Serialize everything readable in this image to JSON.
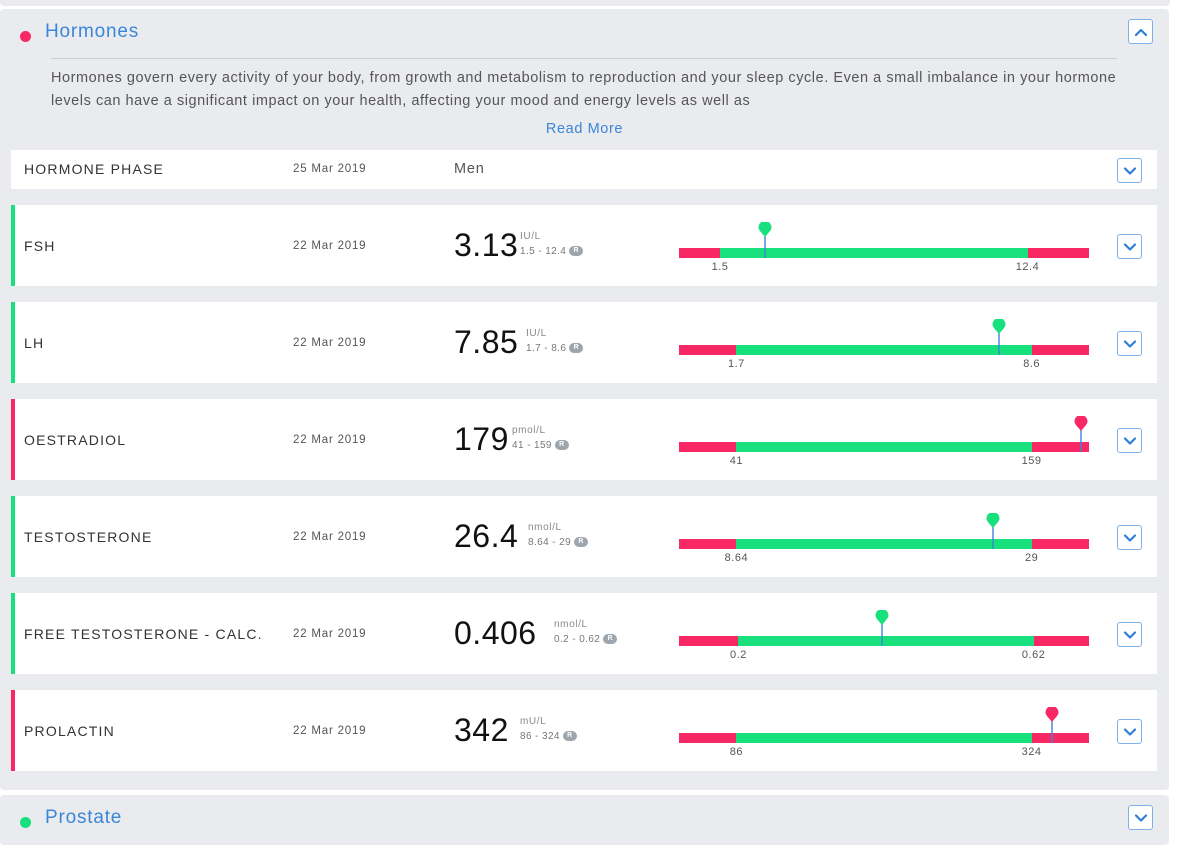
{
  "colors": {
    "accent_blue": "#3a86d8",
    "normal_green": "#17e07d",
    "abnormal_pink": "#f72863"
  },
  "hormones": {
    "title": "Hormones",
    "status_color": "#f72863",
    "toggle_icon": "chevron-up-icon",
    "description": "Hormones govern every activity of your body, from growth and metabolism to reproduction and your sleep cycle. Even a small imbalance in your hormone levels can have a significant impact on your health, affecting your mood and energy levels as well as",
    "read_more": "Read More",
    "phase": {
      "name": "HORMONE PHASE",
      "date": "25 Mar 2019",
      "value": "Men"
    },
    "tests": [
      {
        "name": "FSH",
        "date": "22 Mar 2019",
        "value": "3.13",
        "unit": "IU/L",
        "range": "1.5 - 12.4",
        "low": 1.5,
        "high": 12.4,
        "low_label": "1.5",
        "high_label": "12.4",
        "marker_fraction": 0.21,
        "status": "normal"
      },
      {
        "name": "LH",
        "date": "22 Mar 2019",
        "value": "7.85",
        "unit": "IU/L",
        "range": "1.7 - 8.6",
        "low": 1.7,
        "high": 8.6,
        "low_label": "1.7",
        "high_label": "8.6",
        "marker_fraction": 0.78,
        "status": "normal"
      },
      {
        "name": "OESTRADIOL",
        "date": "22 Mar 2019",
        "value": "179",
        "unit": "pmol/L",
        "range": "41 - 159",
        "low": 41,
        "high": 159,
        "low_label": "41",
        "high_label": "159",
        "marker_fraction": 0.98,
        "status": "abnormal"
      },
      {
        "name": "TESTOSTERONE",
        "date": "22 Mar 2019",
        "value": "26.4",
        "unit": "nmol/L",
        "range": "8.64 - 29",
        "low": 8.64,
        "high": 29,
        "low_label": "8.64",
        "high_label": "29",
        "marker_fraction": 0.765,
        "status": "normal"
      },
      {
        "name": "FREE TESTOSTERONE - CALC.",
        "date": "22 Mar 2019",
        "value": "0.406",
        "unit": "nmol/L",
        "range": "0.2 - 0.62",
        "low": 0.2,
        "high": 0.62,
        "low_label": "0.2",
        "high_label": "0.62",
        "marker_fraction": 0.495,
        "status": "normal"
      },
      {
        "name": "PROLACTIN",
        "date": "22 Mar 2019",
        "value": "342",
        "unit": "mU/L",
        "range": "86 - 324",
        "low": 86,
        "high": 324,
        "low_label": "86",
        "high_label": "324",
        "marker_fraction": 0.91,
        "status": "abnormal"
      }
    ],
    "range_badge": "R"
  },
  "prostate": {
    "title": "Prostate",
    "status_color": "#17e07d",
    "toggle_icon": "chevron-down-icon"
  }
}
